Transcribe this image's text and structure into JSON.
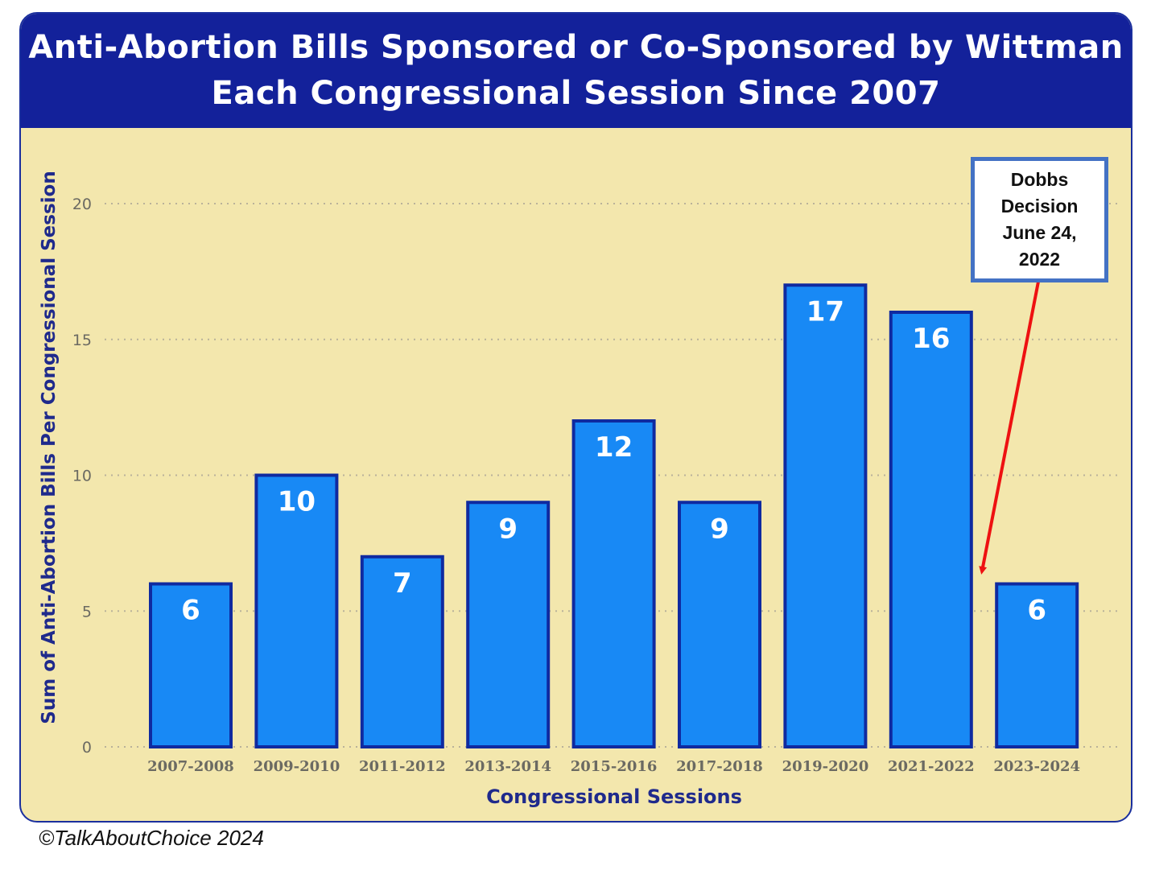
{
  "title_lines": [
    "Anti-Abortion Bills Sponsored or Co-Sponsored by Wittman",
    "Each Congressional Session Since 2007"
  ],
  "colors": {
    "title_bg": "#13219a",
    "plot_bg": "#f3e7ad",
    "bar_fill": "#1889f5",
    "bar_border": "#0f2aa0",
    "axis_text": "#1f2a8c",
    "arrow": "#ee1111"
  },
  "callout": {
    "text": "Dobbs\nDecision\nJune 24,\n2022"
  },
  "credit": "©TalkAboutChoice 2024",
  "chart_data": {
    "type": "bar",
    "title": "Anti-Abortion Bills Sponsored or Co-Sponsored by Wittman Each Congressional Session Since 2007",
    "xlabel": "Congressional Sessions",
    "ylabel": "Sum of Anti-Abortion Bills Per Congressional Session",
    "categories": [
      "2007-2008",
      "2009-2010",
      "2011-2012",
      "2013-2014",
      "2015-2016",
      "2017-2018",
      "2019-2020",
      "2021-2022",
      "2023-2024"
    ],
    "values": [
      6,
      10,
      7,
      9,
      12,
      9,
      17,
      16,
      6
    ],
    "ylim": [
      0,
      20
    ],
    "yticks": [
      0,
      5,
      10,
      15,
      20
    ],
    "grid": true,
    "data_labels": true,
    "annotation": {
      "text": "Dobbs Decision June 24, 2022",
      "points_to": "2023-2024"
    }
  }
}
